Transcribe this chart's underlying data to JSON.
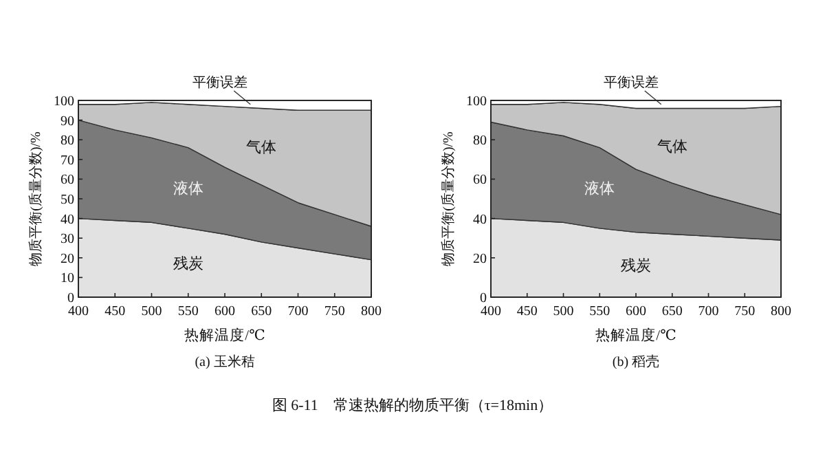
{
  "chart_data": [
    {
      "type": "area",
      "stacked": true,
      "subtitle": "(a) 玉米秸",
      "xlabel": "热解温度/℃",
      "ylabel": "物质平衡(质量分数)/%",
      "x": [
        400,
        450,
        500,
        550,
        600,
        650,
        700,
        750,
        800
      ],
      "xlim": [
        400,
        800
      ],
      "ylim": [
        0,
        100
      ],
      "xticks": [
        400,
        450,
        500,
        550,
        600,
        650,
        700,
        750,
        800
      ],
      "yticks": [
        0,
        10,
        20,
        30,
        40,
        50,
        60,
        70,
        80,
        90,
        100
      ],
      "annotations": [
        "图 6-11　常速热解的物质平衡（τ=18min）"
      ],
      "series": [
        {
          "name": "残炭",
          "color": "#e2e2e2",
          "values": [
            40,
            39,
            38,
            35,
            32,
            28,
            25,
            22,
            19
          ]
        },
        {
          "name": "液体",
          "color": "#7a7a7a",
          "values": [
            50,
            46,
            43,
            41,
            34,
            29,
            23,
            20,
            17
          ]
        },
        {
          "name": "气体",
          "color": "#c4c4c4",
          "values": [
            8,
            13,
            18,
            22,
            31,
            39,
            47,
            53,
            59
          ]
        },
        {
          "name": "平衡误差",
          "color": "#ffffff",
          "values": [
            2,
            2,
            1,
            2,
            3,
            4,
            5,
            5,
            5
          ]
        }
      ]
    },
    {
      "type": "area",
      "stacked": true,
      "subtitle": "(b) 稻壳",
      "xlabel": "热解温度/℃",
      "ylabel": "物质平衡(质量分数)/%",
      "x": [
        400,
        450,
        500,
        550,
        600,
        650,
        700,
        750,
        800
      ],
      "xlim": [
        400,
        800
      ],
      "ylim": [
        0,
        100
      ],
      "xticks": [
        400,
        450,
        500,
        550,
        600,
        650,
        700,
        750,
        800
      ],
      "yticks": [
        0,
        20,
        40,
        60,
        80,
        100
      ],
      "series": [
        {
          "name": "残炭",
          "color": "#e2e2e2",
          "values": [
            40,
            39,
            38,
            35,
            33,
            32,
            31,
            30,
            29
          ]
        },
        {
          "name": "液体",
          "color": "#7a7a7a",
          "values": [
            49,
            46,
            44,
            41,
            32,
            26,
            21,
            17,
            13
          ]
        },
        {
          "name": "气体",
          "color": "#c4c4c4",
          "values": [
            9,
            13,
            17,
            22,
            31,
            38,
            44,
            49,
            55
          ]
        },
        {
          "name": "平衡误差",
          "color": "#ffffff",
          "values": [
            2,
            2,
            1,
            2,
            4,
            4,
            4,
            4,
            3
          ]
        }
      ]
    }
  ]
}
